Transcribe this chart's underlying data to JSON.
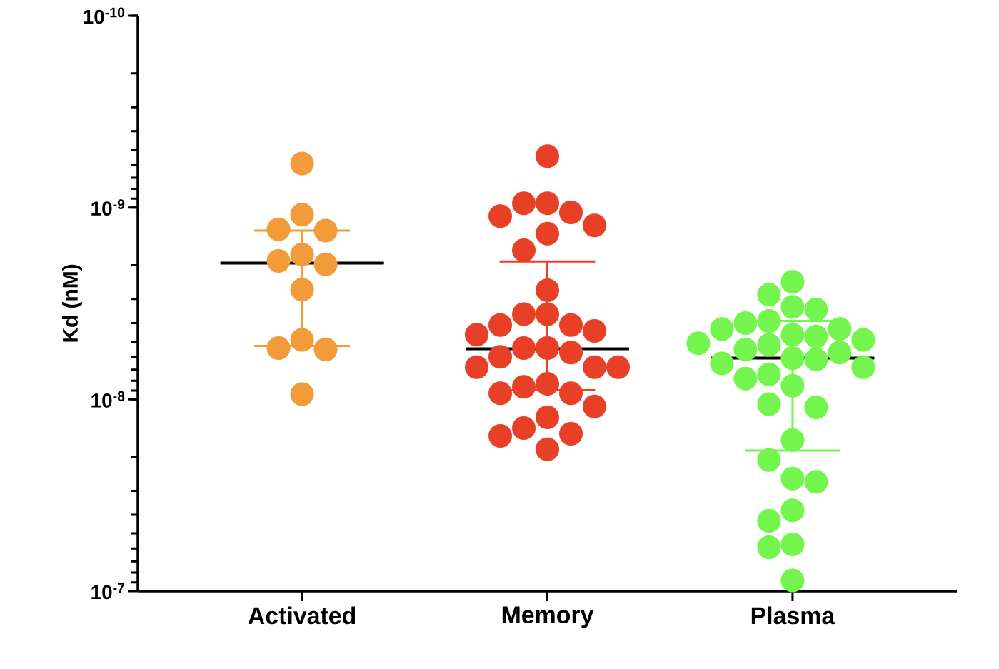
{
  "chart_data": {
    "type": "scatter",
    "ylabel": "Kd (nM)",
    "log": "y",
    "categories": [
      "Activated",
      "Memory",
      "Plasma"
    ],
    "ylim": [
      1e-07,
      1e-10
    ],
    "yticks": [
      {
        "value": 1e-10,
        "label": "10$^{-10}$"
      },
      {
        "value": 1e-09,
        "label": "10$^{-9}$"
      },
      {
        "value": 1e-08,
        "label": "10$^{-8}$"
      },
      {
        "value": 1e-07,
        "label": "10$^{-7}$"
      }
    ],
    "series": [
      {
        "type": "box",
        "color": "#000000",
        "boxes": [
          {
            "low": 1.32e-09,
            "q1": 1.95e-09,
            "median": 1.95e-09,
            "q3": 1.95e-09,
            "high": 5.27e-09
          },
          {
            "low": 1.91e-09,
            "q1": 5.45e-09,
            "median": 5.45e-09,
            "q3": 5.45e-09,
            "high": 8.96e-09
          },
          {
            "low": 3.9e-09,
            "q1": 6.1e-09,
            "median": 6.1e-09,
            "q3": 6.1e-09,
            "high": 1.85e-08
          }
        ]
      },
      {
        "color": "#f19c38",
        "marker": "circle",
        "x": [
          "Activated",
          "Activated",
          "Activated",
          "Activated",
          "Activated",
          "Activated",
          "Activated",
          "Activated",
          "Activated",
          "Activated",
          "Activated",
          "Activated"
        ],
        "values": [
          5.9e-10,
          1.09e-09,
          1.32e-09,
          1.3e-09,
          1.98e-09,
          1.9e-09,
          1.76e-09,
          2.68e-09,
          4.9e-09,
          5.5e-09,
          5.4e-09,
          9.4e-09
        ]
      },
      {
        "color": "#e84026",
        "marker": "circle",
        "x": [
          "Memory",
          "Memory",
          "Memory",
          "Memory",
          "Memory",
          "Memory",
          "Memory",
          "Memory",
          "Memory",
          "Memory",
          "Memory",
          "Memory",
          "Memory",
          "Memory",
          "Memory",
          "Memory",
          "Memory",
          "Memory",
          "Memory",
          "Memory",
          "Memory",
          "Memory",
          "Memory",
          "Memory",
          "Memory",
          "Memory",
          "Memory",
          "Memory",
          "Memory",
          "Memory",
          "Memory",
          "Memory"
        ],
        "values": [
          5.4e-10,
          9.5e-10,
          1.06e-09,
          1.11e-09,
          9.5e-10,
          1.24e-09,
          1.37e-09,
          1.67e-09,
          2.7e-09,
          3.6e-09,
          3.6e-09,
          4.6e-09,
          4.4e-09,
          4.1e-09,
          4.1e-09,
          5.4e-09,
          6e-09,
          6.8e-09,
          6.8e-09,
          6.8e-09,
          5.4e-09,
          5.7e-09,
          8.3e-09,
          9.3e-09,
          9.3e-09,
          8.6e-09,
          1.09e-08,
          1.24e-08,
          1.55e-08,
          1.51e-08,
          1.41e-08,
          1.82e-08
        ]
      },
      {
        "color": "#74f54e",
        "marker": "circle",
        "x": [
          "Plasma",
          "Plasma",
          "Plasma",
          "Plasma",
          "Plasma",
          "Plasma",
          "Plasma",
          "Plasma",
          "Plasma",
          "Plasma",
          "Plasma",
          "Plasma",
          "Plasma",
          "Plasma",
          "Plasma",
          "Plasma",
          "Plasma",
          "Plasma",
          "Plasma",
          "Plasma",
          "Plasma",
          "Plasma",
          "Plasma",
          "Plasma",
          "Plasma",
          "Plasma",
          "Plasma",
          "Plasma",
          "Plasma",
          "Plasma",
          "Plasma",
          "Plasma",
          "Plasma"
        ],
        "values": [
          2.44e-09,
          2.85e-09,
          3.4e-09,
          3.3e-09,
          3.9e-09,
          4.3e-09,
          4.3e-09,
          4e-09,
          4.6e-09,
          4.7e-09,
          5.1e-09,
          4.9e-09,
          5.2e-09,
          5.7e-09,
          5.5e-09,
          6.1e-09,
          6.5e-09,
          6.2e-09,
          6.8e-09,
          7.8e-09,
          7.4e-09,
          8.5e-09,
          1.1e-08,
          1.06e-08,
          1.63e-08,
          2.07e-08,
          2.59e-08,
          2.69e-08,
          3.79e-08,
          4.3e-08,
          5.7e-08,
          5.9e-08,
          8.8e-08
        ]
      }
    ]
  }
}
